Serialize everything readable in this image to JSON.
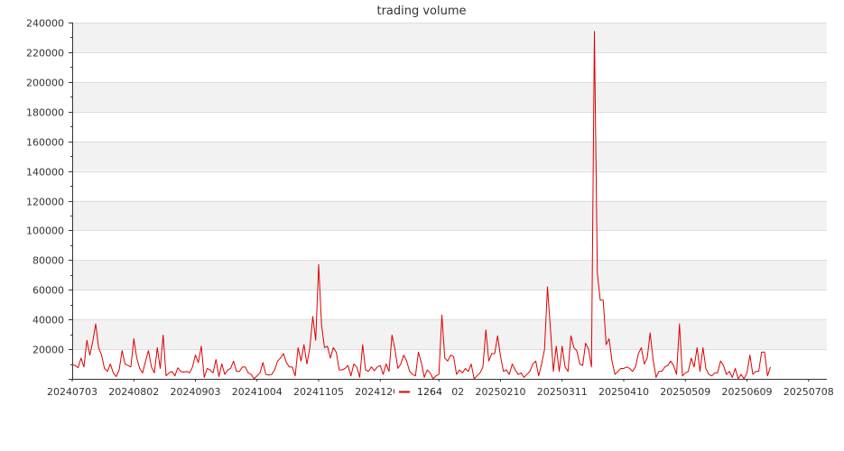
{
  "chart_data": {
    "type": "line",
    "title": "trading volume",
    "xlabel": "",
    "ylabel": "",
    "ylim": [
      0,
      240000
    ],
    "yticks": [
      0,
      20000,
      40000,
      60000,
      80000,
      100000,
      120000,
      140000,
      160000,
      180000,
      200000,
      220000,
      240000
    ],
    "ytick_labels": [
      "",
      "20000",
      "40000",
      "60000",
      "80000",
      "100000",
      "120000",
      "140000",
      "160000",
      "180000",
      "200000",
      "220000",
      "240000"
    ],
    "xtick_labels": [
      "20240703",
      "20240802",
      "20240903",
      "20241004",
      "20241105",
      "20241206",
      "20250102",
      "20250210",
      "20250311",
      "20250410",
      "20250509",
      "20250609",
      "20250708"
    ],
    "xtick_positions": [
      0,
      21,
      42,
      63,
      84,
      105,
      125,
      146,
      167,
      188,
      209,
      230,
      251
    ],
    "grid": true,
    "legend": {
      "position": "bottom-center"
    },
    "colors": {
      "line": "#dd0000",
      "band": "#f2f2f2",
      "grid": "#dddddd",
      "axis": "#333333"
    },
    "series": [
      {
        "name": "1264",
        "values": [
          9500,
          9000,
          7500,
          14000,
          8000,
          26000,
          16000,
          25000,
          37000,
          21000,
          16000,
          7000,
          5000,
          10000,
          4000,
          1500,
          6000,
          19000,
          10000,
          9000,
          8000,
          27000,
          14000,
          7000,
          4000,
          12000,
          19000,
          8000,
          4000,
          21000,
          7000,
          29500,
          2000,
          4000,
          5000,
          2000,
          7500,
          5000,
          4500,
          5000,
          4000,
          8000,
          16000,
          11000,
          22000,
          1000,
          7000,
          6000,
          4000,
          13000,
          1500,
          10000,
          3000,
          6000,
          7000,
          12000,
          5000,
          5000,
          8000,
          8000,
          4000,
          3000,
          0,
          2000,
          4000,
          11000,
          3000,
          2500,
          3000,
          6000,
          12000,
          14000,
          17000,
          11000,
          8000,
          8000,
          2000,
          21000,
          12000,
          23000,
          10000,
          21000,
          42000,
          26000,
          77000,
          36000,
          21000,
          22000,
          14000,
          21000,
          18000,
          6000,
          6000,
          7000,
          9000,
          2000,
          10000,
          8000,
          1000,
          23000,
          6000,
          5000,
          8000,
          5500,
          8000,
          9000,
          3000,
          10000,
          5000,
          29500,
          20000,
          7000,
          10000,
          16000,
          12000,
          5000,
          3000,
          2000,
          18000,
          11000,
          1000,
          6000,
          4000,
          0,
          2000,
          3000,
          43000,
          14000,
          12000,
          16000,
          15000,
          3000,
          6000,
          4000,
          7000,
          5000,
          10000,
          0,
          2000,
          4000,
          8000,
          33000,
          12000,
          17000,
          17000,
          29000,
          15000,
          5000,
          6000,
          3000,
          10000,
          6000,
          3000,
          4000,
          1000,
          3000,
          5000,
          10000,
          12000,
          2000,
          10000,
          20000,
          62000,
          34000,
          5000,
          22000,
          5000,
          22000,
          8000,
          5000,
          29000,
          21000,
          19000,
          10000,
          9000,
          24000,
          20000,
          8000,
          234000,
          71000,
          53000,
          53000,
          23000,
          27000,
          12000,
          3000,
          5000,
          7000,
          7000,
          8000,
          7000,
          5000,
          8000,
          17000,
          21000,
          10000,
          14000,
          31000,
          13000,
          1000,
          5000,
          5000,
          8000,
          9000,
          12000,
          9000,
          3000,
          37000,
          2000,
          4000,
          5000,
          14000,
          8000,
          21000,
          5000,
          21000,
          7000,
          3000,
          2000,
          4000,
          4000,
          12000,
          9000,
          3000,
          5000,
          1000,
          7000,
          0,
          3000,
          0,
          4000,
          16000,
          3000,
          5000,
          5000,
          18000,
          18000,
          2000,
          8000
        ]
      }
    ]
  }
}
